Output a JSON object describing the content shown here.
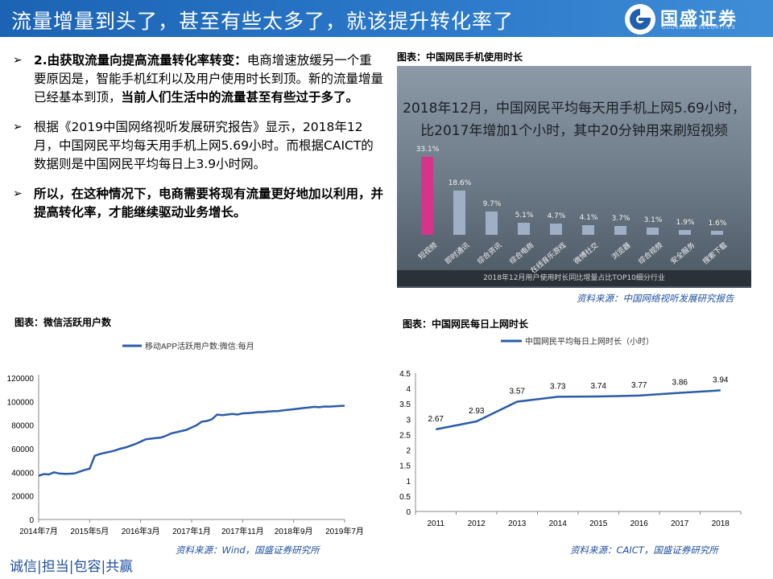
{
  "header": {
    "title": "流量增量到头了，甚至有些太多了，就该提升转化率了",
    "brand": "国盛证券",
    "brand_sub": "GUOSHENG SECURITIES",
    "color": "#2468b8"
  },
  "bullets": [
    {
      "lead": "2.由获取流量向提高流量转化率转变：",
      "text": "电商增速放缓另一个重要原因是，智能手机红利以及用户使用时长到顶。新的流量增量已经基本到顶，",
      "tail": "当前人们生活中的流量甚至有些过于多了。"
    },
    {
      "text": "根据《2019中国网络视听发展研究报告》显示，2018年12月，中国网民平均每天用手机上网5.69小时。而根据CAICT的数据则是中国网民平均每日上3.9小时网。"
    },
    {
      "lead": "所以，在这种情况下，电商需要将现有流量更好地加以利用，并提高转化率，才能继续驱动业务增长。"
    }
  ],
  "phone_figure": {
    "caption": "图表：中国网民手机使用时长",
    "headline_1": "2018年12月，中国网民平均每天用手机上网5.69小时，",
    "headline_2": "比2017年增加1个小时，其中20分钟用来刷短视频",
    "footer": "2018年12月用户使用时长同比增量占比TOP10细分行业",
    "source": "资料来源：中国网络视听发展研究报告",
    "highlight_color": "#d6338a",
    "bar_color": "#9fb0c6"
  },
  "wechat_figure": {
    "caption": "图表：微信活跃用户数",
    "source": "资料来源：Wind，国盛证券研究所",
    "line_color": "#2a5caa"
  },
  "online_figure": {
    "caption": "图表：中国网民每日上网时长",
    "source": "资料来源：CAICT，国盛证券研究所",
    "line_color": "#2a5caa"
  },
  "footer": {
    "slogan": "诚信|担当|包容|共赢"
  },
  "chart_data": [
    {
      "type": "bar",
      "categories": [
        "短视频",
        "即时通讯",
        "综合资讯",
        "综合电商",
        "在线音乐游戏",
        "微博社交",
        "浏览器",
        "综合视频",
        "安全服务",
        "搜索下载"
      ],
      "values": [
        33.1,
        18.6,
        9.7,
        5.1,
        4.7,
        4.1,
        3.7,
        3.1,
        1.9,
        1.6
      ],
      "value_labels": [
        "33.1%",
        "18.6%",
        "9.7%",
        "5.1%",
        "4.7%",
        "4.1%",
        "3.7%",
        "3.1%",
        "1.9%",
        "1.6%"
      ],
      "ylim": [
        0,
        35
      ]
    },
    {
      "type": "line",
      "series": [
        {
          "name": "移动APP活跃用户数:微信:每月",
          "points": [
            [
              "2014-07",
              37000
            ],
            [
              "2014-08",
              38500
            ],
            [
              "2014-09",
              38200
            ],
            [
              "2014-10",
              40000
            ],
            [
              "2014-11",
              39000
            ],
            [
              "2014-12",
              38700
            ],
            [
              "2015-01",
              38800
            ],
            [
              "2015-02",
              39000
            ],
            [
              "2015-03",
              40500
            ],
            [
              "2015-04",
              42000
            ],
            [
              "2015-05",
              43000
            ],
            [
              "2015-06",
              54000
            ],
            [
              "2015-07",
              55500
            ],
            [
              "2015-08",
              56500
            ],
            [
              "2015-09",
              57500
            ],
            [
              "2015-10",
              58500
            ],
            [
              "2015-11",
              60000
            ],
            [
              "2015-12",
              61000
            ],
            [
              "2016-01",
              62500
            ],
            [
              "2016-02",
              64000
            ],
            [
              "2016-03",
              66000
            ],
            [
              "2016-04",
              68000
            ],
            [
              "2016-05",
              68500
            ],
            [
              "2016-06",
              69000
            ],
            [
              "2016-07",
              69500
            ],
            [
              "2016-08",
              71000
            ],
            [
              "2016-09",
              73000
            ],
            [
              "2016-10",
              74000
            ],
            [
              "2016-11",
              75000
            ],
            [
              "2016-12",
              76000
            ],
            [
              "2017-01",
              78000
            ],
            [
              "2017-02",
              80000
            ],
            [
              "2017-03",
              83000
            ],
            [
              "2017-04",
              83500
            ],
            [
              "2017-05",
              85000
            ],
            [
              "2017-06",
              89000
            ],
            [
              "2017-07",
              88500
            ],
            [
              "2017-08",
              89000
            ],
            [
              "2017-09",
              89500
            ],
            [
              "2017-10",
              89000
            ],
            [
              "2017-11",
              90000
            ],
            [
              "2017-12",
              90200
            ],
            [
              "2018-01",
              90500
            ],
            [
              "2018-02",
              91000
            ],
            [
              "2018-03",
              91000
            ],
            [
              "2018-04",
              91500
            ],
            [
              "2018-05",
              91800
            ],
            [
              "2018-06",
              92000
            ],
            [
              "2018-07",
              92500
            ],
            [
              "2018-08",
              93000
            ],
            [
              "2018-09",
              93500
            ],
            [
              "2018-10",
              94000
            ],
            [
              "2018-11",
              94500
            ],
            [
              "2018-12",
              95000
            ],
            [
              "2019-01",
              95500
            ],
            [
              "2019-02",
              95200
            ],
            [
              "2019-03",
              95800
            ],
            [
              "2019-04",
              95700
            ],
            [
              "2019-05",
              95900
            ],
            [
              "2019-06",
              96200
            ],
            [
              "2019-07",
              96500
            ]
          ]
        }
      ],
      "x_tick_labels": [
        "2014年7月",
        "2015年5月",
        "2016年3月",
        "2017年1月",
        "2017年11月",
        "2018年9月",
        "2019年7月"
      ],
      "x_tick_keys": [
        "2014-07",
        "2015-05",
        "2016-03",
        "2017-01",
        "2017-11",
        "2018-09",
        "2019-07"
      ],
      "y_ticks": [
        0,
        20000,
        40000,
        60000,
        80000,
        100000,
        120000
      ],
      "ylim": [
        0,
        120000
      ],
      "legend_position": "top"
    },
    {
      "type": "line",
      "categories": [
        "2011",
        "2012",
        "2013",
        "2014",
        "2015",
        "2016",
        "2017",
        "2018"
      ],
      "series": [
        {
          "name": "中国网民平均每日上网时长（小时）",
          "values": [
            2.67,
            2.93,
            3.57,
            3.73,
            3.74,
            3.77,
            3.86,
            3.94
          ]
        }
      ],
      "value_labels": [
        "2.67",
        "2.93",
        "3.57",
        "3.73",
        "3.74",
        "3.77",
        "3.86",
        "3.94"
      ],
      "y_ticks": [
        0,
        0.5,
        1,
        1.5,
        2,
        2.5,
        3,
        3.5,
        4,
        4.5
      ],
      "y_tick_labels": [
        "0",
        "0.5",
        "1",
        "1.5",
        "2",
        "2.5",
        "3",
        "3.5",
        "4",
        "4.5"
      ],
      "ylim": [
        0,
        4.5
      ],
      "legend_position": "top"
    }
  ]
}
